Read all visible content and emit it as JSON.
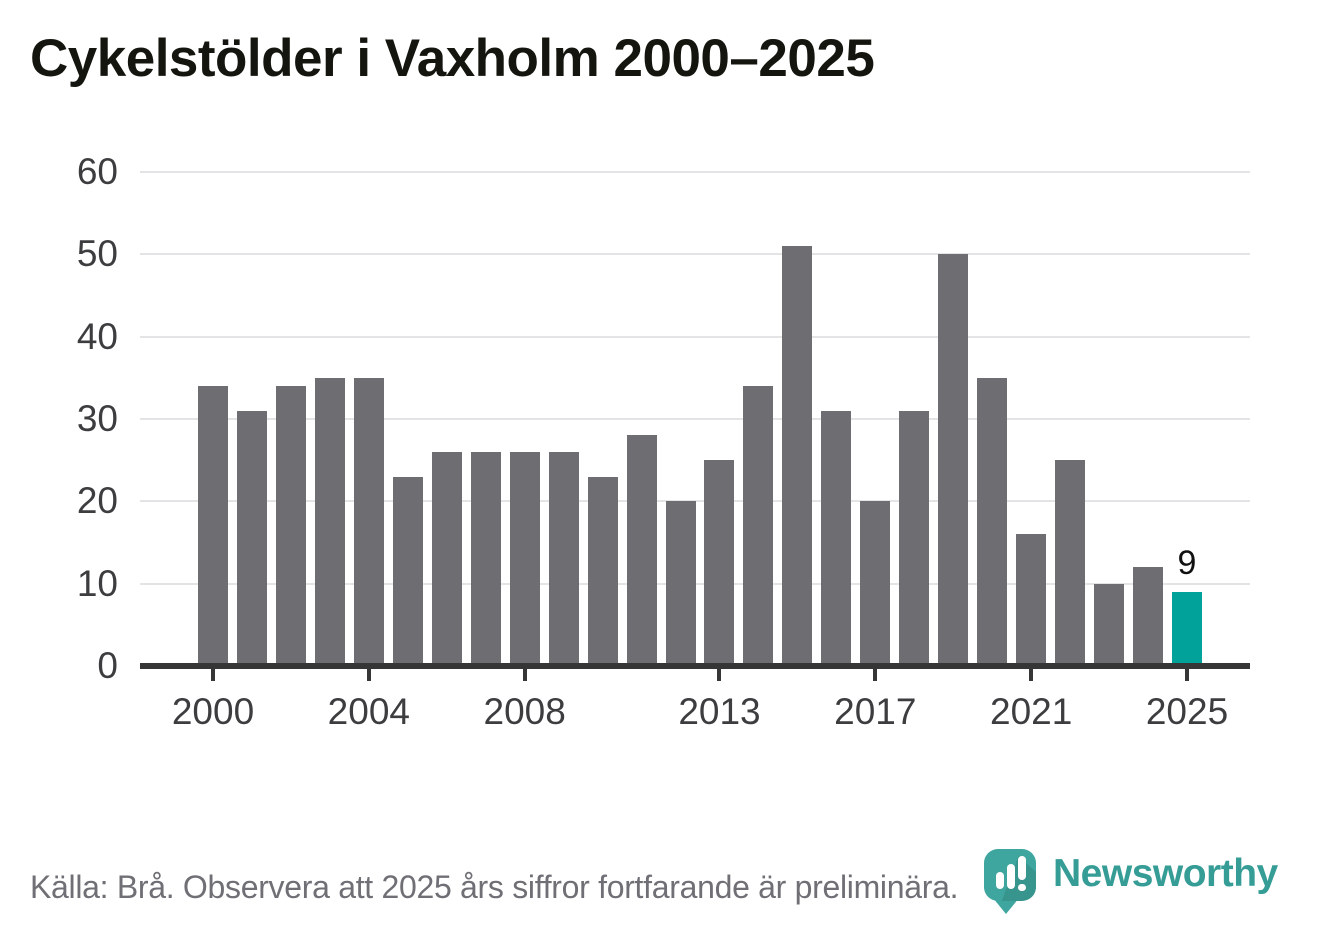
{
  "title": "Cykelstölder i Vaxholm 2000–2025",
  "footer": {
    "source_note": "Källa: Brå. Observera att 2025 års siffror fortfarande är preliminära.",
    "brand": "Newsworthy"
  },
  "colors": {
    "bar": "#6e6e72",
    "highlight": "#00a29a",
    "gridline": "#e4e4e6",
    "axis": "#363636",
    "axis_labels": "#3d3d40",
    "title_text": "#15150f",
    "source_text": "#6f6f75",
    "brand_teal": "#359c96",
    "logo_bubble": "#3ea69f"
  },
  "chart_data": {
    "type": "bar",
    "title": "Cykelstölder i Vaxholm 2000–2025",
    "categories": [
      2000,
      2001,
      2002,
      2003,
      2004,
      2005,
      2006,
      2007,
      2008,
      2009,
      2010,
      2011,
      2012,
      2013,
      2014,
      2015,
      2016,
      2017,
      2018,
      2019,
      2020,
      2021,
      2022,
      2023,
      2024,
      2025
    ],
    "values": [
      34,
      31,
      34,
      35,
      35,
      23,
      26,
      26,
      26,
      26,
      23,
      28,
      20,
      25,
      34,
      51,
      31,
      20,
      31,
      50,
      35,
      16,
      25,
      10,
      12,
      9
    ],
    "xlabel": "",
    "ylabel": "",
    "ylim": [
      0,
      60
    ],
    "y_ticks": [
      0,
      10,
      20,
      30,
      40,
      50,
      60
    ],
    "x_tick_labels": [
      "2000",
      "2004",
      "2008",
      "2013",
      "2017",
      "2021",
      "2025"
    ],
    "grid": true,
    "legend": false,
    "highlight_year": 2025,
    "highlight_value_label": "9"
  }
}
